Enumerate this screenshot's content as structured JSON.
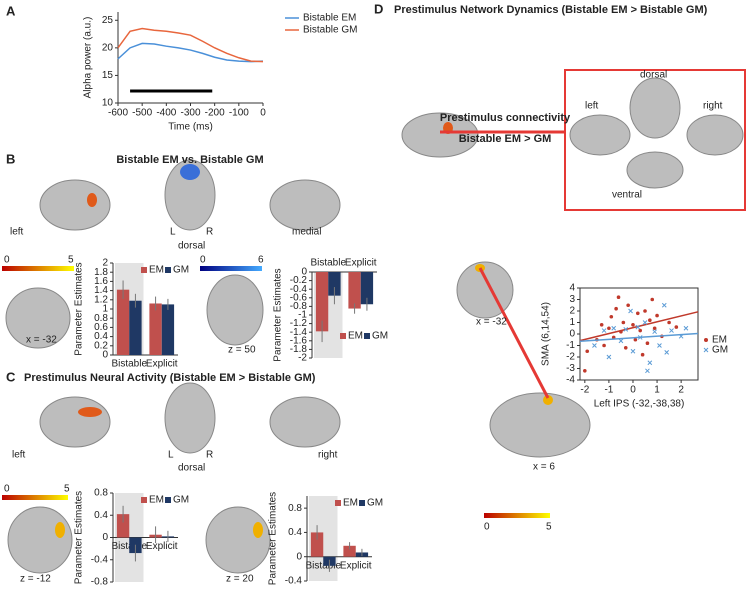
{
  "chart_data": [
    {
      "type": "line",
      "ylabel": "Alpha power (a.u.)",
      "xlabel": "Time (ms)",
      "x": [
        -600,
        -550,
        -500,
        -450,
        -400,
        -350,
        -300,
        -250,
        -200,
        -150,
        -100,
        -50,
        0
      ],
      "xlim": [
        -600,
        0
      ],
      "xticks": [
        -600,
        -500,
        -400,
        -300,
        -200,
        -100,
        0
      ],
      "ylim": [
        10,
        26.5
      ],
      "yticks": [
        10,
        15,
        20,
        25
      ],
      "significance": [
        -550,
        -210
      ],
      "series": [
        {
          "name": "Bistable EM",
          "color": "#4a90d9",
          "values": [
            18,
            20,
            20.8,
            20.7,
            20.3,
            20.0,
            19.6,
            19.0,
            18.3,
            17.8,
            17.6,
            17.5,
            17.6
          ]
        },
        {
          "name": "Bistable GM",
          "color": "#e8663d",
          "values": [
            20,
            23,
            23.5,
            23.2,
            23.0,
            22.7,
            22.3,
            21.2,
            20,
            19,
            18.2,
            17.6,
            17.5
          ]
        }
      ]
    },
    {
      "type": "bar",
      "ylabel": "Parameter Estimates",
      "categories": [
        "Bistable",
        "Explicit"
      ],
      "ylim": [
        0,
        2
      ],
      "yticks": [
        0,
        0.2,
        0.4,
        0.6,
        0.8,
        1,
        1.2,
        1.4,
        1.6,
        1.8,
        2
      ],
      "series": [
        {
          "name": "EM",
          "color": "#c0504d",
          "values": [
            1.42,
            1.12
          ],
          "errors": [
            0.2,
            0.15
          ]
        },
        {
          "name": "GM",
          "color": "#1f3864",
          "values": [
            1.18,
            1.1
          ],
          "errors": [
            0.15,
            0.12
          ]
        }
      ]
    },
    {
      "type": "bar",
      "ylabel": "Parameter Estimates",
      "categories": [
        "Bistable",
        "Explicit"
      ],
      "ylim": [
        -2,
        0
      ],
      "yticks": [
        0,
        -0.2,
        -0.4,
        -0.6,
        -0.8,
        -1,
        -1.2,
        -1.4,
        -1.6,
        -1.8,
        -2
      ],
      "series": [
        {
          "name": "EM",
          "color": "#c0504d",
          "values": [
            -1.38,
            -0.85
          ],
          "errors": [
            0.25,
            0.12
          ]
        },
        {
          "name": "GM",
          "color": "#1f3864",
          "values": [
            -0.55,
            -0.75
          ],
          "errors": [
            0.2,
            0.15
          ]
        }
      ]
    },
    {
      "type": "bar",
      "ylabel": "Parameter Estimates",
      "categories": [
        "Bistable",
        "Explicit"
      ],
      "ylim": [
        -0.8,
        0.8
      ],
      "yticks": [
        -0.8,
        -0.4,
        0,
        0.4,
        0.8
      ],
      "series": [
        {
          "name": "EM",
          "color": "#c0504d",
          "values": [
            0.42,
            0.05
          ],
          "errors": [
            0.15,
            0.15
          ]
        },
        {
          "name": "GM",
          "color": "#1f3864",
          "values": [
            -0.28,
            0.02
          ],
          "errors": [
            0.15,
            0.1
          ]
        }
      ]
    },
    {
      "type": "bar",
      "ylabel": "Parameter Estimates",
      "categories": [
        "Bistable",
        "Explicit"
      ],
      "ylim": [
        -0.4,
        1
      ],
      "yticks": [
        -0.4,
        0,
        0.4,
        0.8
      ],
      "series": [
        {
          "name": "EM",
          "color": "#c0504d",
          "values": [
            0.4,
            0.18
          ],
          "errors": [
            0.12,
            0.06
          ]
        },
        {
          "name": "GM",
          "color": "#1f3864",
          "values": [
            -0.15,
            0.07
          ],
          "errors": [
            0.1,
            0.06
          ]
        }
      ]
    },
    {
      "type": "scatter",
      "xlabel": "Left IPS (-32,-38,38)",
      "ylabel": "SMA (6,14,54)",
      "xlim": [
        -2.2,
        2.7
      ],
      "xticks": [
        -2,
        -1,
        0,
        1,
        2
      ],
      "ylim": [
        -4,
        4
      ],
      "yticks": [
        -4,
        -3,
        -2,
        -1,
        0,
        1,
        2,
        3,
        4
      ],
      "series": [
        {
          "name": "EM",
          "color": "#c0392b",
          "x": [
            -2,
            -1.9,
            -1.5,
            -1.3,
            -1.2,
            -1,
            -0.9,
            -0.8,
            -0.7,
            -0.5,
            -0.4,
            -0.3,
            -0.2,
            0,
            0.1,
            0.2,
            0.3,
            0.5,
            0.6,
            0.7,
            0.8,
            0.9,
            1,
            1.2,
            1.5,
            1.8,
            -0.6,
            0.4
          ],
          "y": [
            -3.2,
            -1.5,
            -0.5,
            0.8,
            -1,
            0.5,
            1.5,
            -0.3,
            2.2,
            0.2,
            1,
            -1.2,
            2.5,
            0.8,
            -0.5,
            1.8,
            0.3,
            2,
            -0.8,
            1.2,
            3,
            0.5,
            1.6,
            -0.2,
            1,
            0.6,
            3.2,
            -1.8
          ]
        },
        {
          "name": "GM",
          "color": "#5b9bd5",
          "x": [
            -1.6,
            -1.2,
            -1,
            -0.8,
            -0.5,
            -0.3,
            0,
            0.2,
            0.3,
            0.5,
            0.7,
            0.9,
            1.1,
            1.3,
            1.6,
            2,
            2.2,
            -0.1,
            0.6,
            1.4
          ],
          "y": [
            -1,
            0.3,
            -2,
            0.5,
            -0.6,
            0.4,
            -1.5,
            0.6,
            -0.3,
            1,
            -2.5,
            0.2,
            -1,
            2.5,
            0.3,
            -0.2,
            0.5,
            2,
            -3.2,
            -1.6
          ]
        }
      ]
    }
  ],
  "figure": {
    "panels": [
      "A",
      "B",
      "C",
      "D"
    ],
    "titles": [
      "Bistable EM vs. Bistable GM",
      "Prestimulus Neural Activity (Bistable EM > Bistable GM)",
      "Prestimulus Network Dynamics (Bistable EM > Bistable GM)"
    ],
    "b_labels": [
      "left",
      "L",
      "R",
      "dorsal",
      "medial",
      "x = -32",
      "z = 50"
    ],
    "c_labels": [
      "left",
      "L",
      "R",
      "dorsal",
      "right",
      "z = -12",
      "z = 20"
    ],
    "d_labels": [
      "Prestimulus connectivity",
      "Bistable EM > GM",
      "dorsal",
      "left",
      "right",
      "ventral",
      "x = -32",
      "x = 6"
    ],
    "colorbars": [
      [
        0,
        5
      ],
      [
        0,
        6
      ],
      [
        0,
        5
      ],
      [
        0,
        5
      ]
    ]
  }
}
